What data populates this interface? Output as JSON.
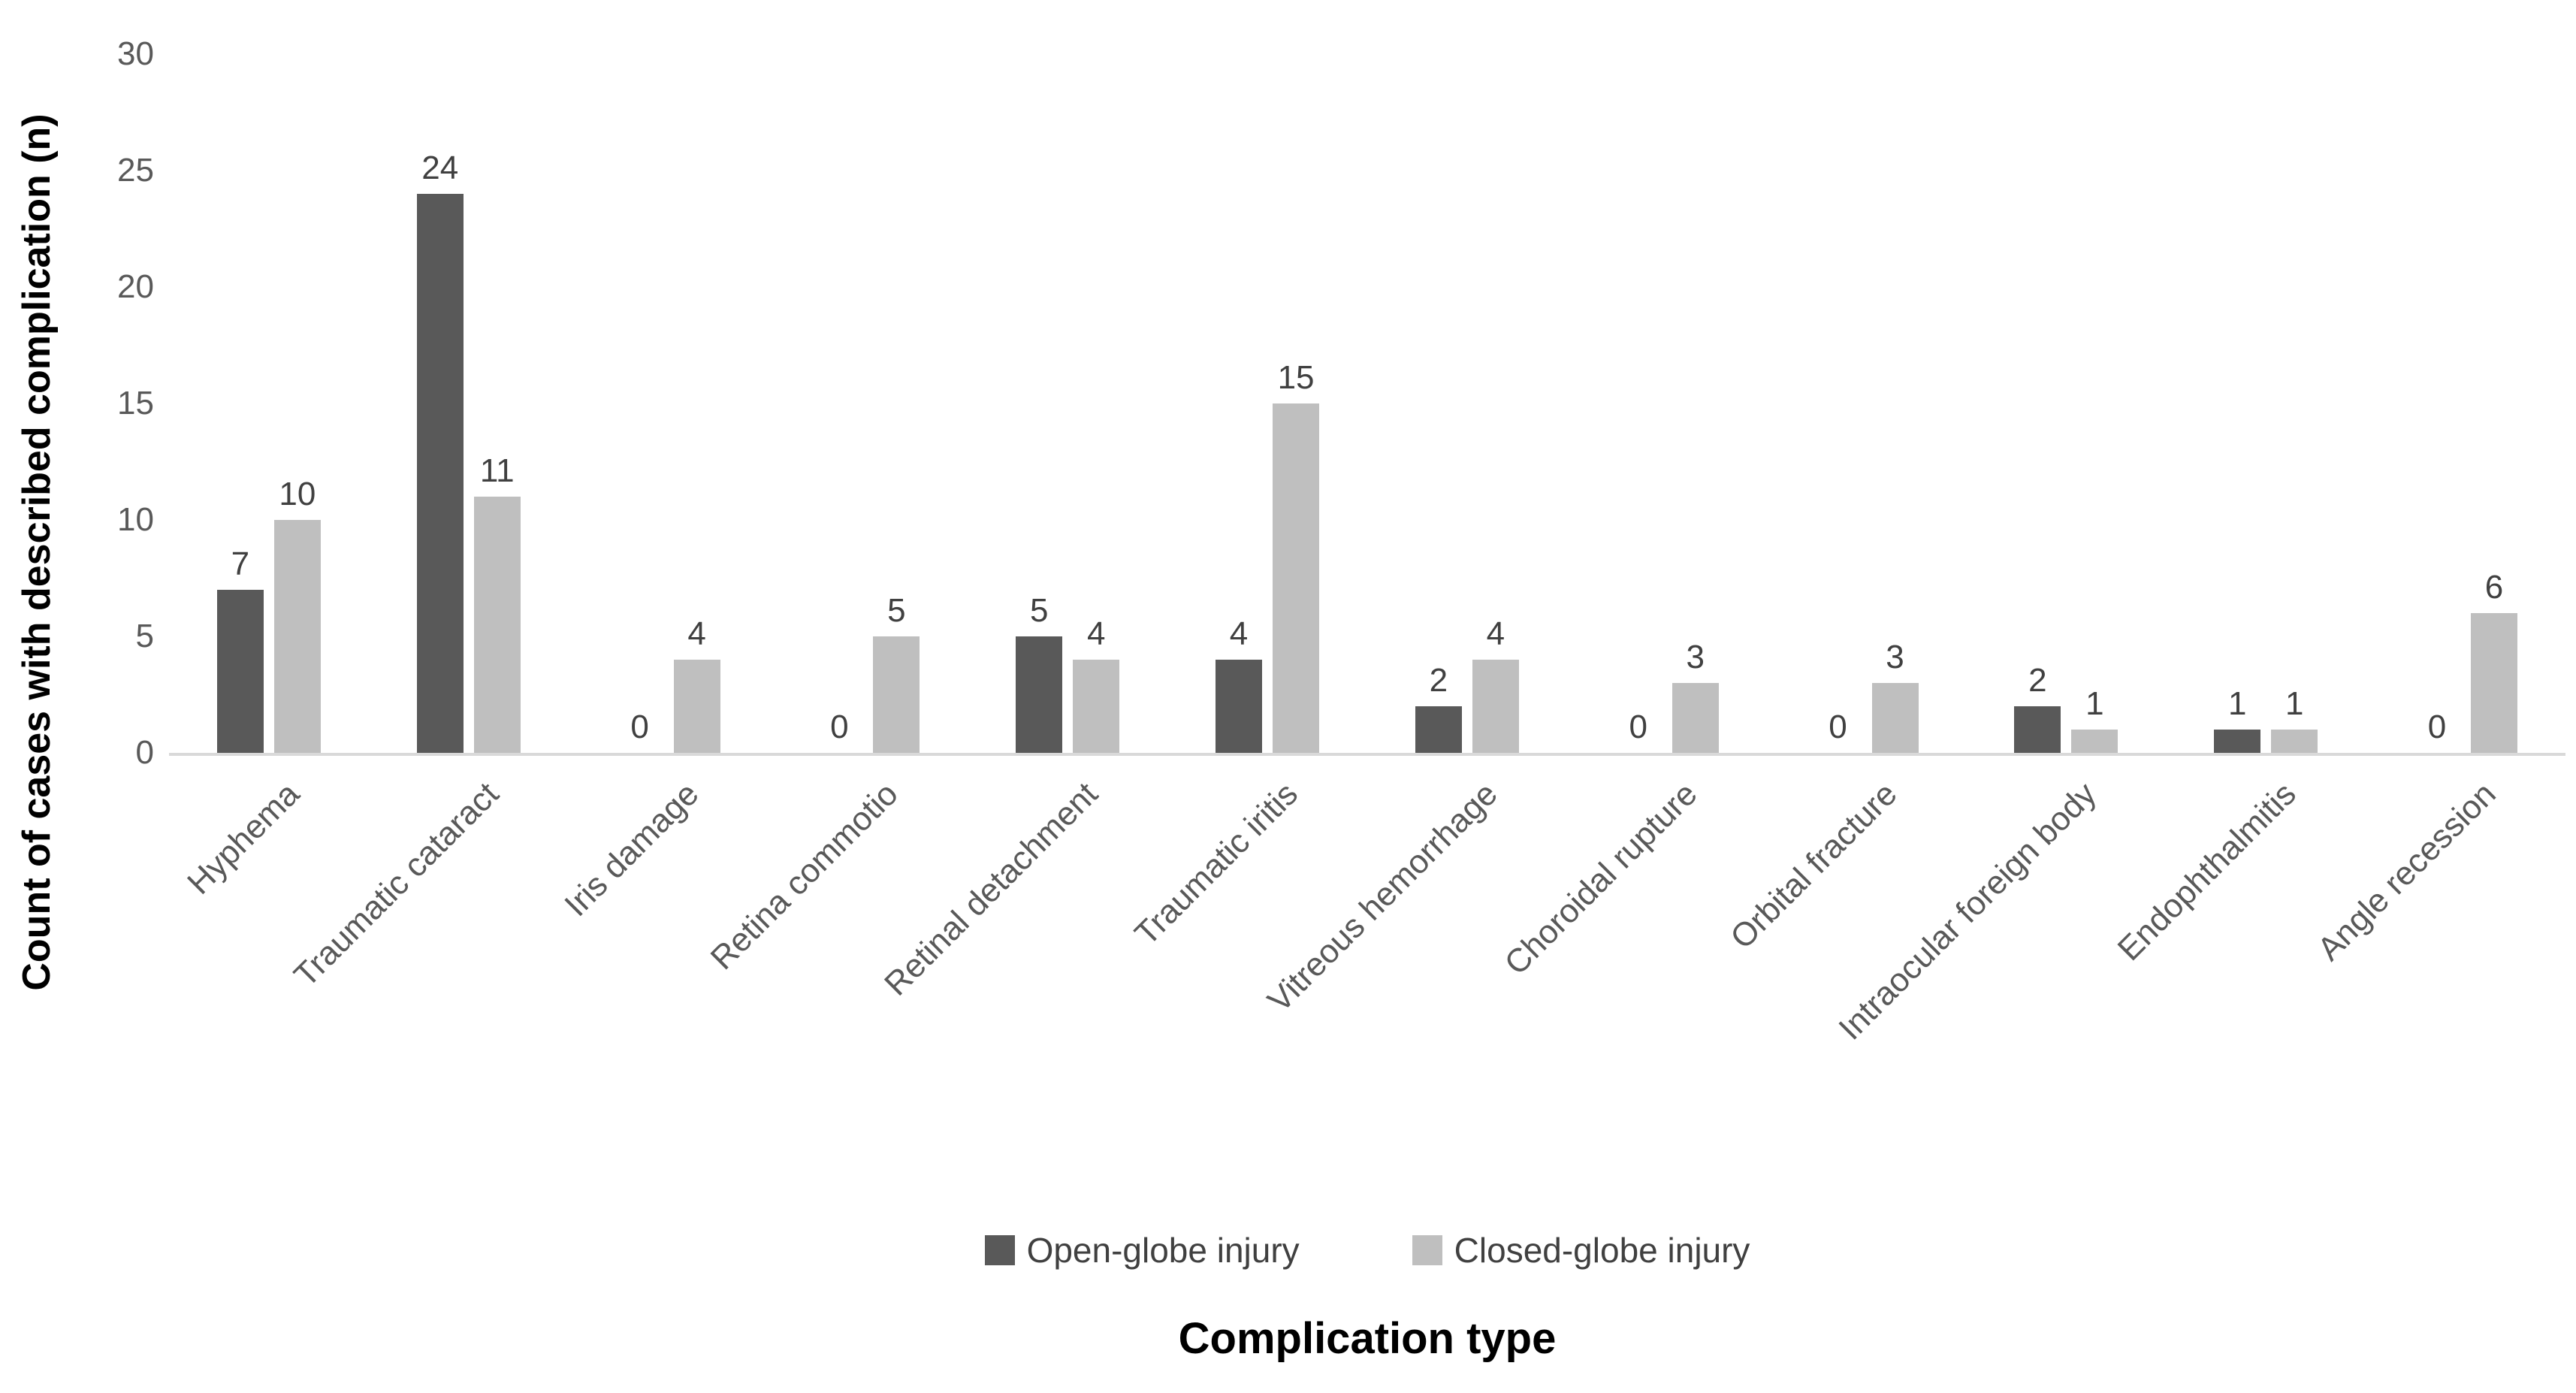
{
  "chart_data": {
    "type": "bar",
    "title": "",
    "xlabel": "Complication type",
    "ylabel": "Count of cases with described complication (n)",
    "ylim": [
      0,
      30
    ],
    "y_ticks": [
      0,
      5,
      10,
      15,
      20,
      25,
      30
    ],
    "grid": false,
    "data_labels": true,
    "legend_position": "bottom",
    "categories": [
      "Hyphema",
      "Traumatic cataract",
      "Iris damage",
      "Retina commotio",
      "Retinal detachment",
      "Traumatic iritis",
      "Vitreous hemorrhage",
      "Choroidal rupture",
      "Orbital fracture",
      "Intraocular foreign body",
      "Endophthalmitis",
      "Angle recession"
    ],
    "series": [
      {
        "name": "Open-globe injury",
        "color": "#595959",
        "values": [
          7,
          24,
          0,
          0,
          5,
          4,
          2,
          0,
          0,
          2,
          1,
          0
        ]
      },
      {
        "name": "Closed-globe injury",
        "color": "#bfbfbf",
        "values": [
          10,
          11,
          4,
          5,
          4,
          15,
          4,
          3,
          3,
          1,
          1,
          6
        ]
      }
    ]
  },
  "colors": {
    "axis_line": "#d9d9d9",
    "tick_label": "#595959",
    "category_label": "#595959",
    "data_label": "#404040",
    "legend_text": "#404040",
    "axis_title": "#000000",
    "background": "#ffffff"
  }
}
